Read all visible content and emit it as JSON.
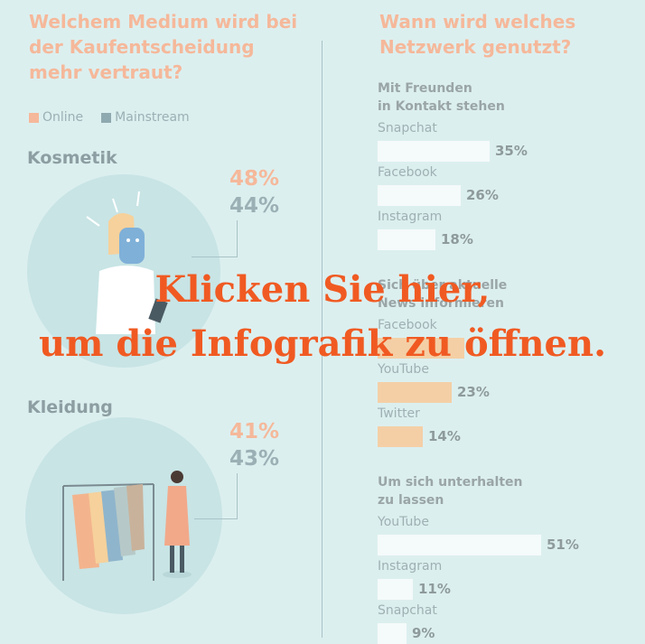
{
  "left": {
    "title_lines": [
      "Welchem Medium wird bei",
      "der Kaufentscheidung",
      "mehr vertraut?"
    ],
    "legend": [
      {
        "label": "Online",
        "color": "#f5b89a"
      },
      {
        "label": "Mainstream",
        "color": "#8fa9b0"
      }
    ]
  },
  "right": {
    "title_lines": [
      "Wann wird welches",
      "Netzwerk genutzt?"
    ]
  },
  "chart_data": [
    {
      "type": "bar",
      "title": "Welchem Medium wird bei der Kaufentscheidung mehr vertraut?",
      "categories": [
        "Kosmetik",
        "Kleidung"
      ],
      "series": [
        {
          "name": "Online",
          "values": [
            48,
            41
          ],
          "labels": [
            "48%",
            "41%"
          ]
        },
        {
          "name": "Mainstream",
          "values": [
            44,
            43
          ],
          "labels": [
            "44%",
            "43%"
          ]
        }
      ]
    },
    {
      "type": "bar",
      "title": "Wann wird welches Netzwerk genutzt?",
      "groups": [
        {
          "title_lines": [
            "Mit Freunden",
            "in Kontakt stehen"
          ],
          "color": "#f5fafa",
          "items": [
            {
              "label": "Snapchat",
              "value": 35,
              "display": "35%"
            },
            {
              "label": "Facebook",
              "value": 26,
              "display": "26%"
            },
            {
              "label": "Instagram",
              "value": 18,
              "display": "18%"
            }
          ]
        },
        {
          "title_lines": [
            "Sich über aktuelle",
            "News informieren"
          ],
          "color": "#f4cfa6",
          "items": [
            {
              "label": "Facebook",
              "value": 27,
              "display": ""
            },
            {
              "label": "YouTube",
              "value": 23,
              "display": "23%"
            },
            {
              "label": "Twitter",
              "value": 14,
              "display": "14%"
            }
          ]
        },
        {
          "title_lines": [
            "Um sich unterhalten",
            "zu lassen"
          ],
          "color": "#f5fafa",
          "items": [
            {
              "label": "YouTube",
              "value": 51,
              "display": "51%"
            },
            {
              "label": "Instagram",
              "value": 11,
              "display": "11%"
            },
            {
              "label": "Snapchat",
              "value": 9,
              "display": "9%"
            }
          ]
        }
      ]
    }
  ],
  "overlay": {
    "line1": "Klicken Sie hier,",
    "line2": "um die Infografik zu öffnen.",
    "color": "#f05a22"
  }
}
